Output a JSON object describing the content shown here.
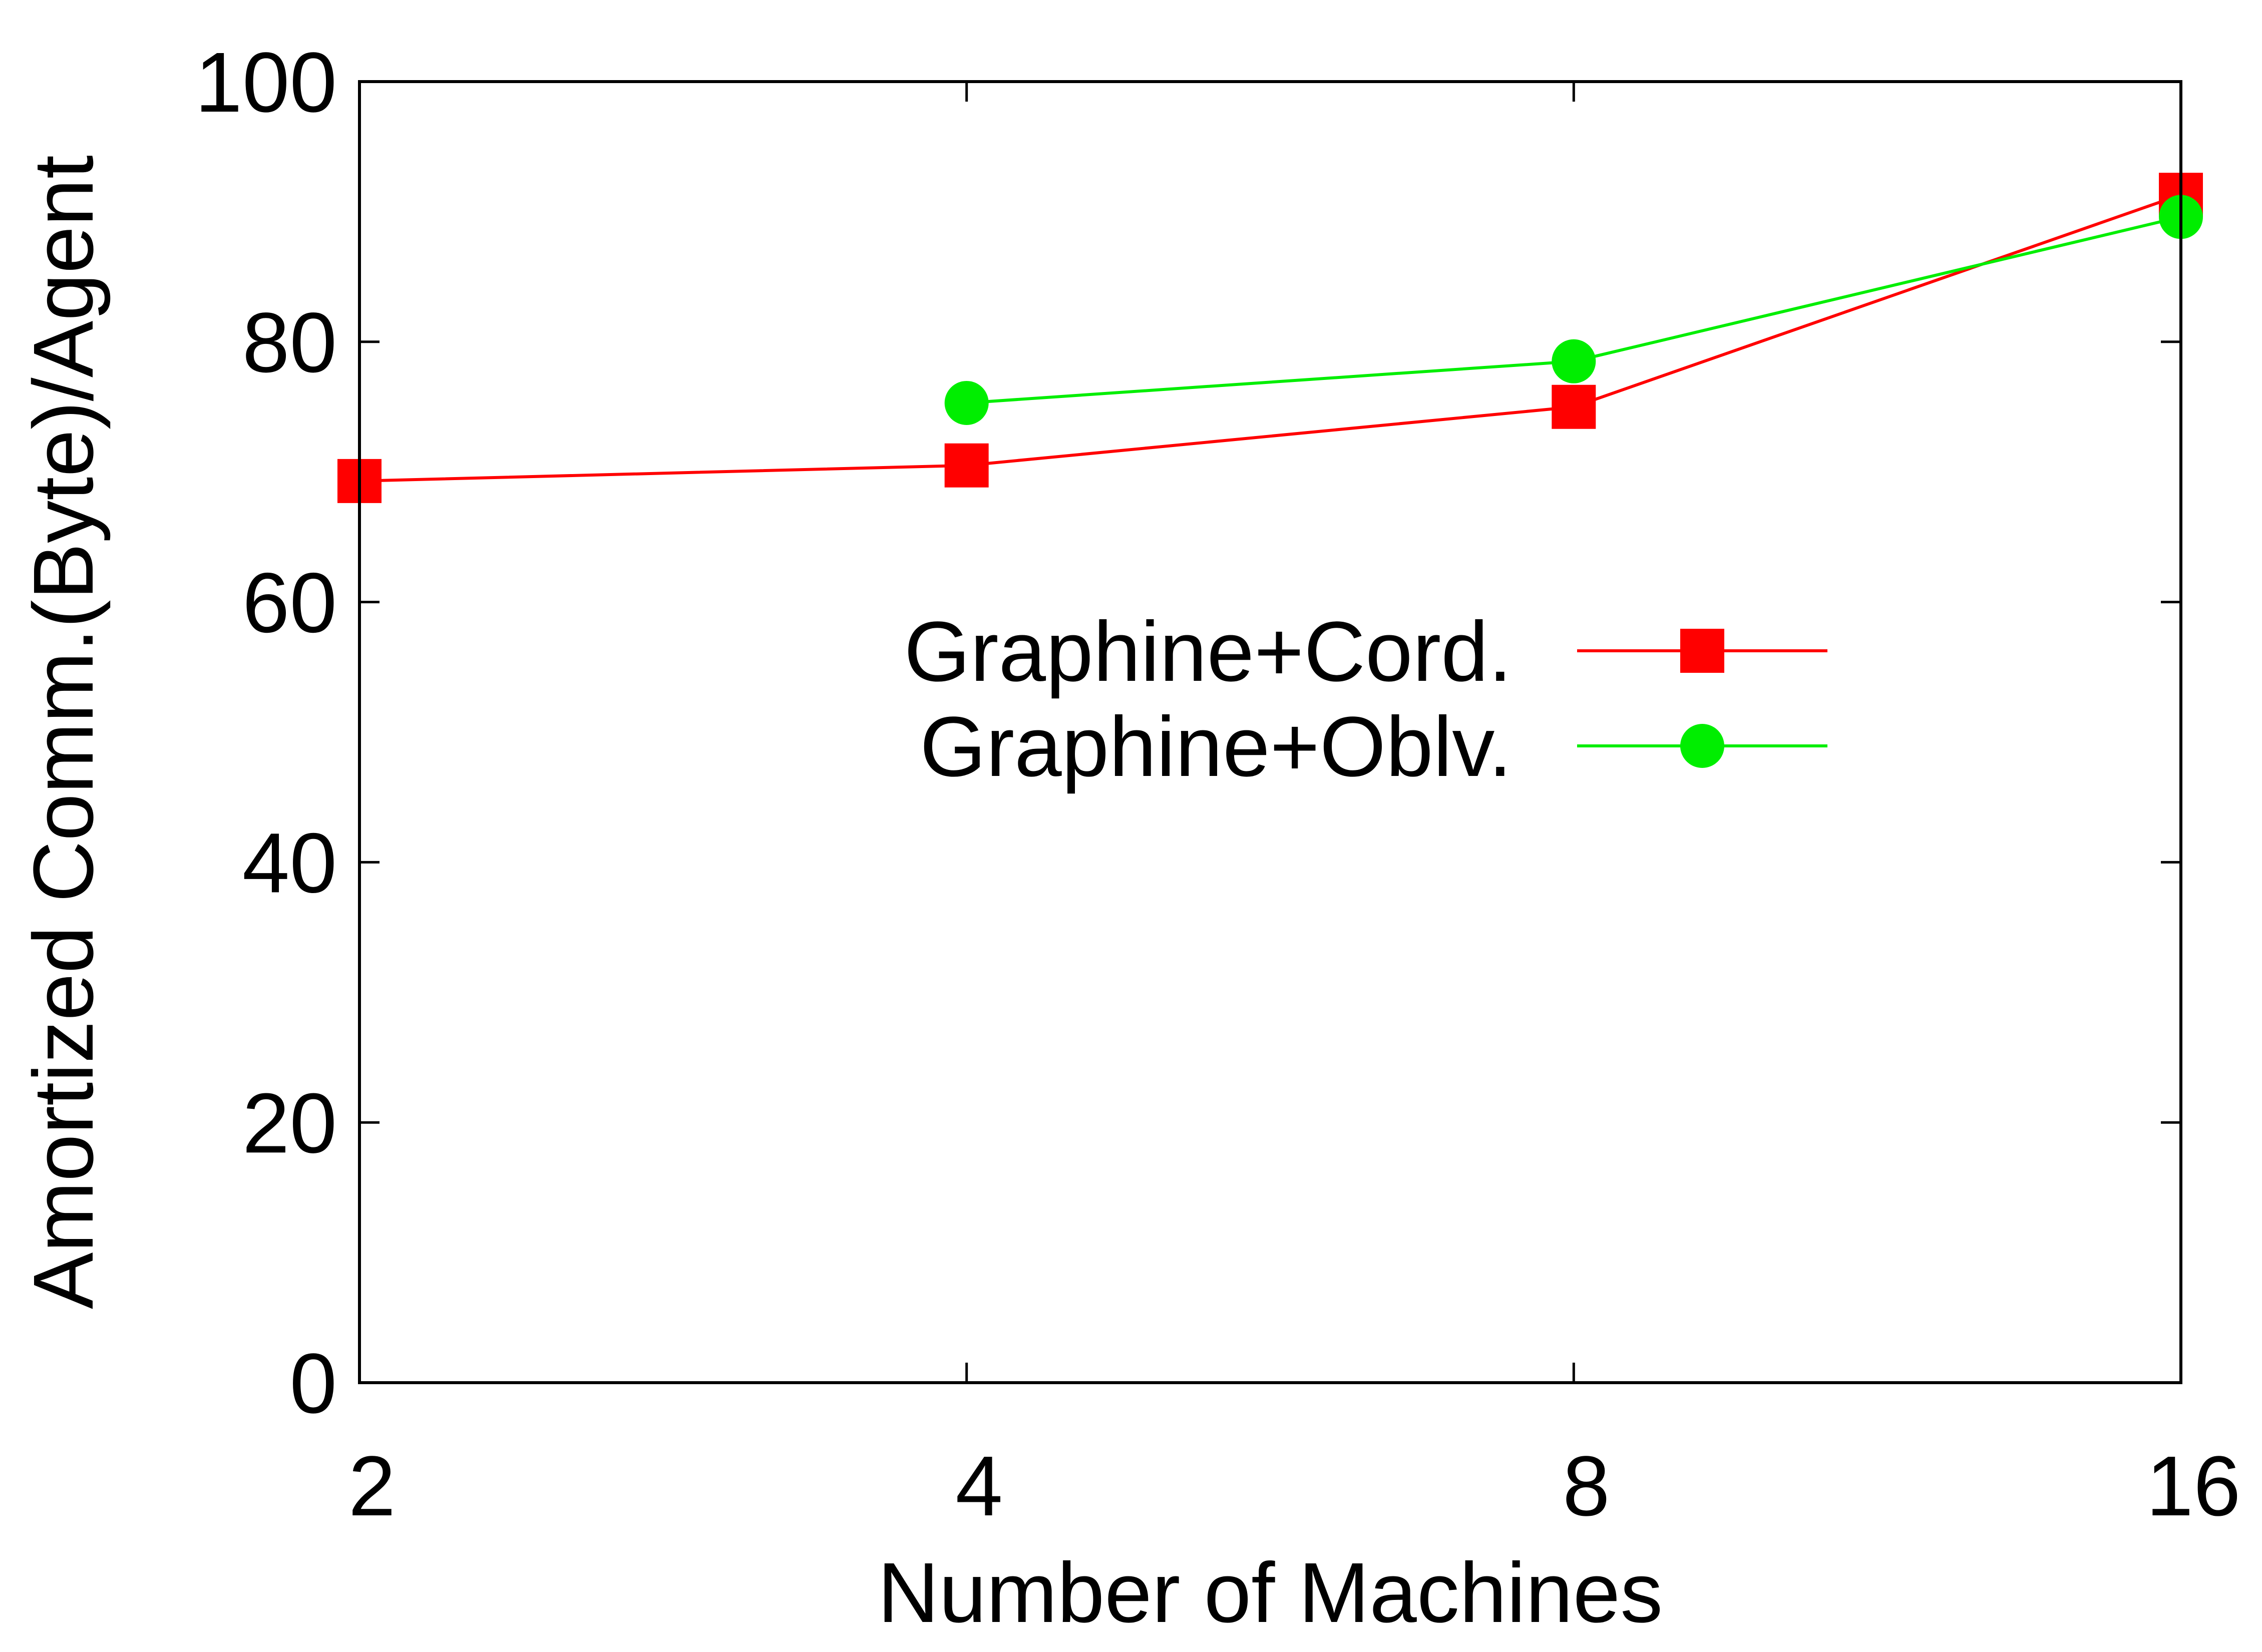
{
  "chart_data": {
    "type": "line",
    "title": "",
    "xlabel": "Number of Machines",
    "ylabel": "Amortized Comm.(Byte)/Agent",
    "x_scale": "log2",
    "x_ticks": [
      2,
      4,
      8,
      16
    ],
    "x_tick_labels": [
      "2",
      "4",
      "8",
      "16"
    ],
    "xlim": [
      2,
      16
    ],
    "y_ticks": [
      0,
      20,
      40,
      60,
      80,
      100
    ],
    "y_tick_labels": [
      "0",
      "20",
      "40",
      "60",
      "80",
      "100"
    ],
    "ylim": [
      0,
      100
    ],
    "grid": false,
    "legend_position": "center-right",
    "series": [
      {
        "name": "Graphine+Cord.",
        "color": "#ff0000",
        "marker": "square",
        "x": [
          2,
          4,
          8,
          16
        ],
        "y": [
          69.3,
          70.5,
          75.0,
          91.3
        ]
      },
      {
        "name": "Graphine+Oblv.",
        "color": "#00ee00",
        "marker": "circle",
        "x": [
          4,
          8,
          16
        ],
        "y": [
          75.3,
          78.5,
          89.6
        ]
      }
    ]
  }
}
